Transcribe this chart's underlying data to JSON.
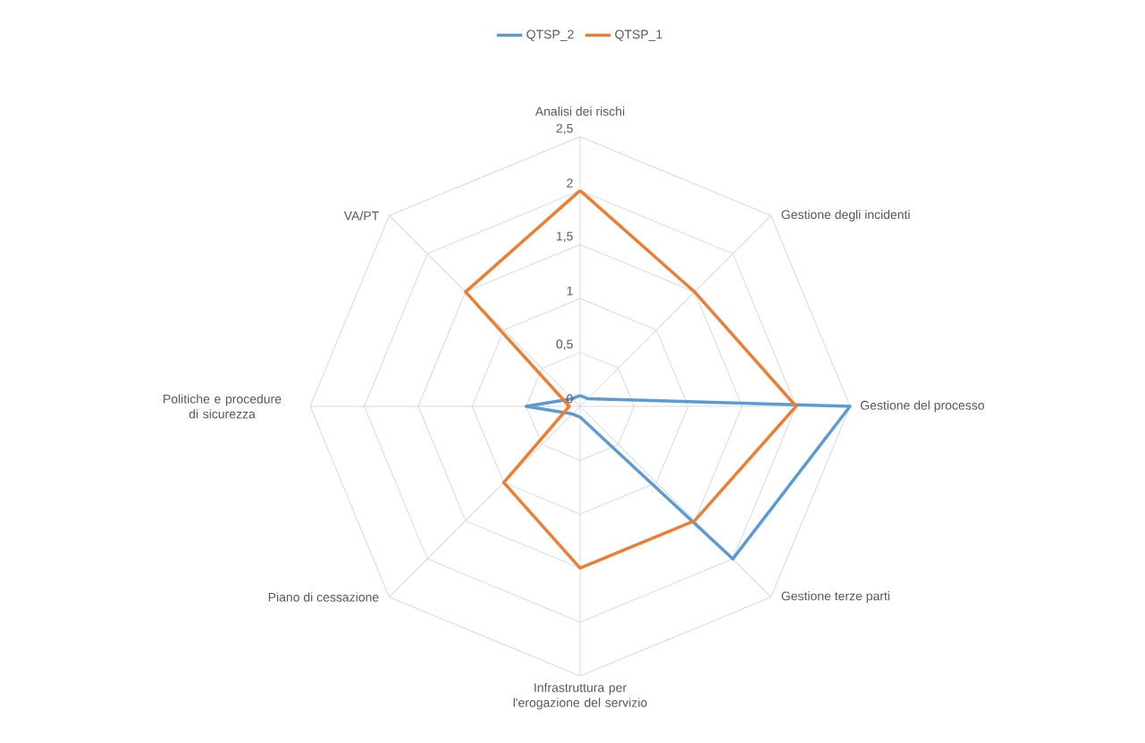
{
  "chart_data": {
    "type": "radar",
    "categories": [
      "Analisi dei rischi",
      "Gestione degli incidenti",
      "Gestione del processo",
      "Gestione terze parti",
      "Infrastruttura per l'erogazione del servizio",
      "Piano di cessazione",
      "Politiche e procedure di sicurezza",
      "VA/PT"
    ],
    "series": [
      {
        "name": "QTSP_2",
        "color": "#5b9bd5",
        "values": [
          0.1,
          0.1,
          2.5,
          2,
          0.1,
          0.1,
          0.5,
          0.1
        ]
      },
      {
        "name": "QTSP_1",
        "color": "#ed7d31",
        "values": [
          2,
          1.5,
          2,
          1.5,
          1.5,
          1,
          0.1,
          1.5
        ]
      }
    ],
    "ylim": [
      0,
      2.5
    ],
    "yticks": [
      0,
      {
        "value": 0.5,
        "label": "0,5"
      },
      1,
      {
        "value": 1.5,
        "label": "1,5"
      },
      2,
      {
        "value": 2.5,
        "label": "2,5"
      }
    ],
    "grid": true,
    "legend": "top"
  }
}
